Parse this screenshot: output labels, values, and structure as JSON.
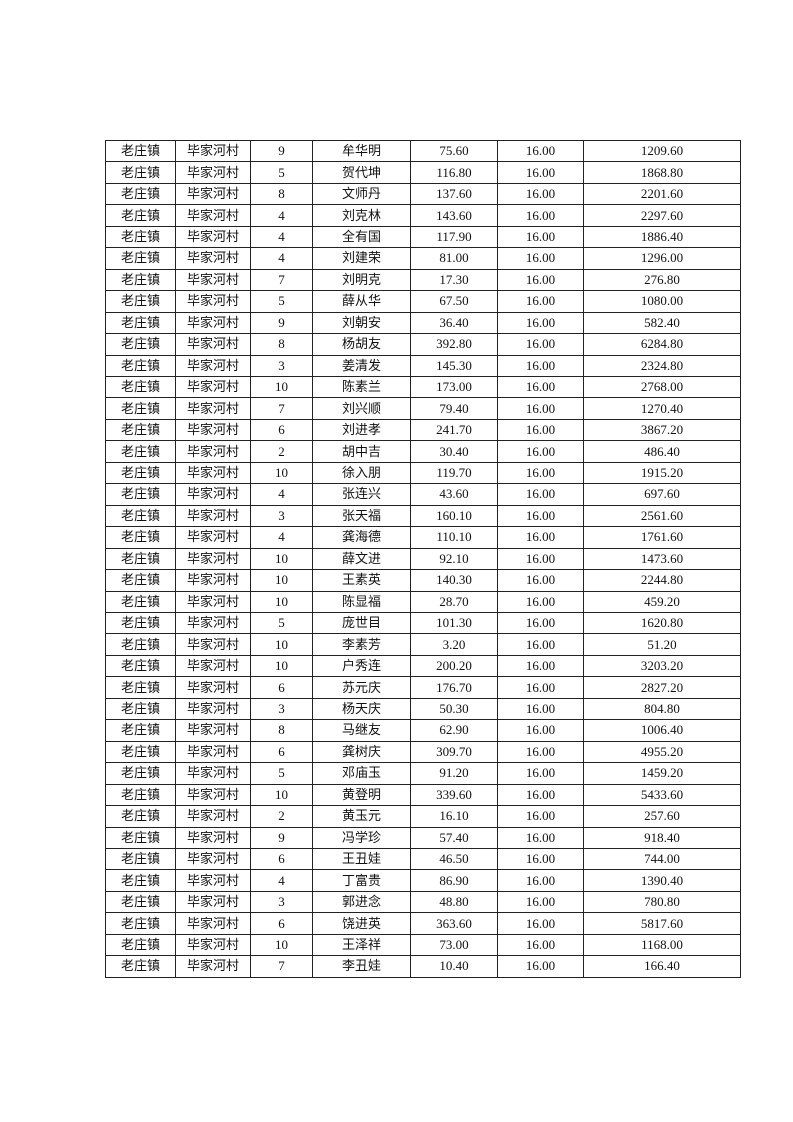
{
  "table": {
    "rows": [
      [
        "老庄镇",
        "毕家河村",
        "9",
        "牟华明",
        "75.60",
        "16.00",
        "1209.60"
      ],
      [
        "老庄镇",
        "毕家河村",
        "5",
        "贺代坤",
        "116.80",
        "16.00",
        "1868.80"
      ],
      [
        "老庄镇",
        "毕家河村",
        "8",
        "文师丹",
        "137.60",
        "16.00",
        "2201.60"
      ],
      [
        "老庄镇",
        "毕家河村",
        "4",
        "刘克林",
        "143.60",
        "16.00",
        "2297.60"
      ],
      [
        "老庄镇",
        "毕家河村",
        "4",
        "全有国",
        "117.90",
        "16.00",
        "1886.40"
      ],
      [
        "老庄镇",
        "毕家河村",
        "4",
        "刘建荣",
        "81.00",
        "16.00",
        "1296.00"
      ],
      [
        "老庄镇",
        "毕家河村",
        "7",
        "刘明克",
        "17.30",
        "16.00",
        "276.80"
      ],
      [
        "老庄镇",
        "毕家河村",
        "5",
        "薛从华",
        "67.50",
        "16.00",
        "1080.00"
      ],
      [
        "老庄镇",
        "毕家河村",
        "9",
        "刘朝安",
        "36.40",
        "16.00",
        "582.40"
      ],
      [
        "老庄镇",
        "毕家河村",
        "8",
        "杨胡友",
        "392.80",
        "16.00",
        "6284.80"
      ],
      [
        "老庄镇",
        "毕家河村",
        "3",
        "姜清发",
        "145.30",
        "16.00",
        "2324.80"
      ],
      [
        "老庄镇",
        "毕家河村",
        "10",
        "陈素兰",
        "173.00",
        "16.00",
        "2768.00"
      ],
      [
        "老庄镇",
        "毕家河村",
        "7",
        "刘兴顺",
        "79.40",
        "16.00",
        "1270.40"
      ],
      [
        "老庄镇",
        "毕家河村",
        "6",
        "刘进孝",
        "241.70",
        "16.00",
        "3867.20"
      ],
      [
        "老庄镇",
        "毕家河村",
        "2",
        "胡中吉",
        "30.40",
        "16.00",
        "486.40"
      ],
      [
        "老庄镇",
        "毕家河村",
        "10",
        "徐入朋",
        "119.70",
        "16.00",
        "1915.20"
      ],
      [
        "老庄镇",
        "毕家河村",
        "4",
        "张连兴",
        "43.60",
        "16.00",
        "697.60"
      ],
      [
        "老庄镇",
        "毕家河村",
        "3",
        "张天福",
        "160.10",
        "16.00",
        "2561.60"
      ],
      [
        "老庄镇",
        "毕家河村",
        "4",
        "龚海德",
        "110.10",
        "16.00",
        "1761.60"
      ],
      [
        "老庄镇",
        "毕家河村",
        "10",
        "薛文进",
        "92.10",
        "16.00",
        "1473.60"
      ],
      [
        "老庄镇",
        "毕家河村",
        "10",
        "王素英",
        "140.30",
        "16.00",
        "2244.80"
      ],
      [
        "老庄镇",
        "毕家河村",
        "10",
        "陈显福",
        "28.70",
        "16.00",
        "459.20"
      ],
      [
        "老庄镇",
        "毕家河村",
        "5",
        "庞世目",
        "101.30",
        "16.00",
        "1620.80"
      ],
      [
        "老庄镇",
        "毕家河村",
        "10",
        "李素芳",
        "3.20",
        "16.00",
        "51.20"
      ],
      [
        "老庄镇",
        "毕家河村",
        "10",
        "户秀连",
        "200.20",
        "16.00",
        "3203.20"
      ],
      [
        "老庄镇",
        "毕家河村",
        "6",
        "苏元庆",
        "176.70",
        "16.00",
        "2827.20"
      ],
      [
        "老庄镇",
        "毕家河村",
        "3",
        "杨天庆",
        "50.30",
        "16.00",
        "804.80"
      ],
      [
        "老庄镇",
        "毕家河村",
        "8",
        "马继友",
        "62.90",
        "16.00",
        "1006.40"
      ],
      [
        "老庄镇",
        "毕家河村",
        "6",
        "龚树庆",
        "309.70",
        "16.00",
        "4955.20"
      ],
      [
        "老庄镇",
        "毕家河村",
        "5",
        "邓庙玉",
        "91.20",
        "16.00",
        "1459.20"
      ],
      [
        "老庄镇",
        "毕家河村",
        "10",
        "黄登明",
        "339.60",
        "16.00",
        "5433.60"
      ],
      [
        "老庄镇",
        "毕家河村",
        "2",
        "黄玉元",
        "16.10",
        "16.00",
        "257.60"
      ],
      [
        "老庄镇",
        "毕家河村",
        "9",
        "冯学珍",
        "57.40",
        "16.00",
        "918.40"
      ],
      [
        "老庄镇",
        "毕家河村",
        "6",
        "王丑娃",
        "46.50",
        "16.00",
        "744.00"
      ],
      [
        "老庄镇",
        "毕家河村",
        "4",
        "丁富贵",
        "86.90",
        "16.00",
        "1390.40"
      ],
      [
        "老庄镇",
        "毕家河村",
        "3",
        "郭进念",
        "48.80",
        "16.00",
        "780.80"
      ],
      [
        "老庄镇",
        "毕家河村",
        "6",
        "饶进英",
        "363.60",
        "16.00",
        "5817.60"
      ],
      [
        "老庄镇",
        "毕家河村",
        "10",
        "王泽祥",
        "73.00",
        "16.00",
        "1168.00"
      ],
      [
        "老庄镇",
        "毕家河村",
        "7",
        "李丑娃",
        "10.40",
        "16.00",
        "166.40"
      ]
    ]
  }
}
